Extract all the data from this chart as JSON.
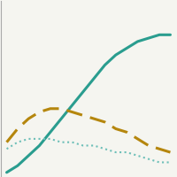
{
  "years": [
    2008,
    2009,
    2010,
    2011,
    2012,
    2013,
    2014,
    2015,
    2016,
    2017,
    2018,
    2019,
    2020,
    2021,
    2022,
    2023
  ],
  "solid_teal": [
    1,
    3,
    6,
    9,
    13,
    17,
    21,
    25,
    29,
    33,
    36,
    38,
    40,
    41,
    42,
    42
  ],
  "dashed_gold": [
    10,
    14,
    17,
    19,
    20,
    20,
    19,
    18,
    17,
    16,
    14,
    13,
    11,
    9,
    8,
    7
  ],
  "dotted_teal": [
    8,
    10,
    11,
    11,
    11,
    10,
    10,
    9,
    9,
    8,
    7,
    7,
    6,
    5,
    4,
    4
  ],
  "solid_color": "#2a9d8f",
  "dashed_color": "#b5860d",
  "dotted_color": "#6dbfb8",
  "ylim": [
    0,
    52
  ],
  "xlim": [
    2007.5,
    2023.5
  ],
  "background_color": "#f5f5f0",
  "grid_color": "#ffffff",
  "figsize": [
    2.0,
    2.0
  ],
  "dpi": 100
}
